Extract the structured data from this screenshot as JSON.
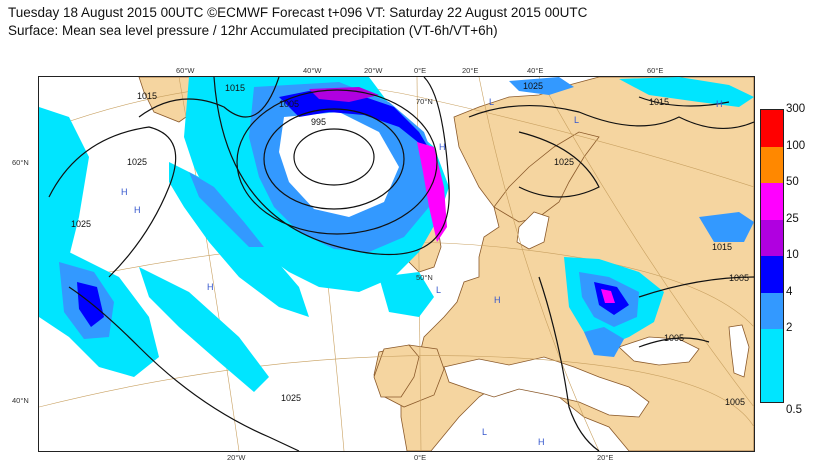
{
  "header": {
    "line1": "Tuesday 18 August 2015 00UTC ©ECMWF Forecast t+096 VT: Saturday 22 August 2015 00UTC",
    "line2": "Surface: Mean sea level pressure / 12hr Accumulated precipitation (VT-6h/VT+6h)"
  },
  "legend": {
    "levels": [
      "300",
      "100",
      "50",
      "25",
      "10",
      "4",
      "2",
      "0.5"
    ],
    "colors": [
      "#ff0000",
      "#ff8800",
      "#ff00ff",
      "#b000e0",
      "#0000ff",
      "#3399ff",
      "#00e5ff",
      "#ffffff"
    ]
  },
  "graticule_labels": {
    "top": [
      "60°W",
      "40°W",
      "20°W",
      "0°E",
      "20°E",
      "40°E",
      "60°E"
    ],
    "left": [
      "60°N",
      "40°N"
    ],
    "bottom": [
      "20°W",
      "0°E",
      "20°E"
    ],
    "inner_lat": [
      "70°N",
      "50°N"
    ]
  },
  "isobars": [
    "1015",
    "1015",
    "1025",
    "1025",
    "1005",
    "995",
    "1025",
    "1025",
    "1015",
    "1015",
    "1005",
    "1005",
    "1025",
    "1005",
    "1005"
  ],
  "pressure_centres": [
    "H",
    "H",
    "H",
    "H",
    "H",
    "L",
    "L",
    "L",
    "L",
    "H",
    "H",
    "L",
    "L",
    "H",
    "H",
    "L"
  ],
  "colors": {
    "land": "#f5d5a0",
    "coast": "#8b5a2b",
    "isobar": "#111111",
    "graticule": "#c8a060",
    "centre_label": "#3355cc"
  }
}
